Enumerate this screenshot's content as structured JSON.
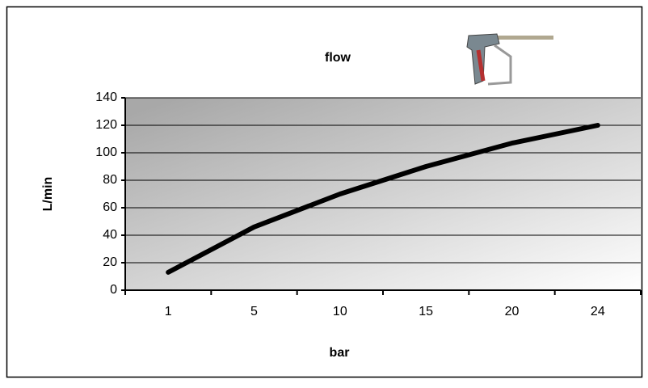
{
  "chart_data": {
    "type": "line",
    "title": "flow",
    "x_label": "bar",
    "y_label": "L/min",
    "categories": [
      "1",
      "5",
      "10",
      "15",
      "20",
      "24"
    ],
    "series": [
      {
        "name": "flow",
        "color": "#000000",
        "values": [
          13,
          46,
          70,
          90,
          107,
          120
        ]
      }
    ],
    "ylim": [
      0,
      140
    ],
    "yticks": [
      0,
      20,
      40,
      60,
      80,
      100,
      120,
      140
    ],
    "grid": true
  }
}
